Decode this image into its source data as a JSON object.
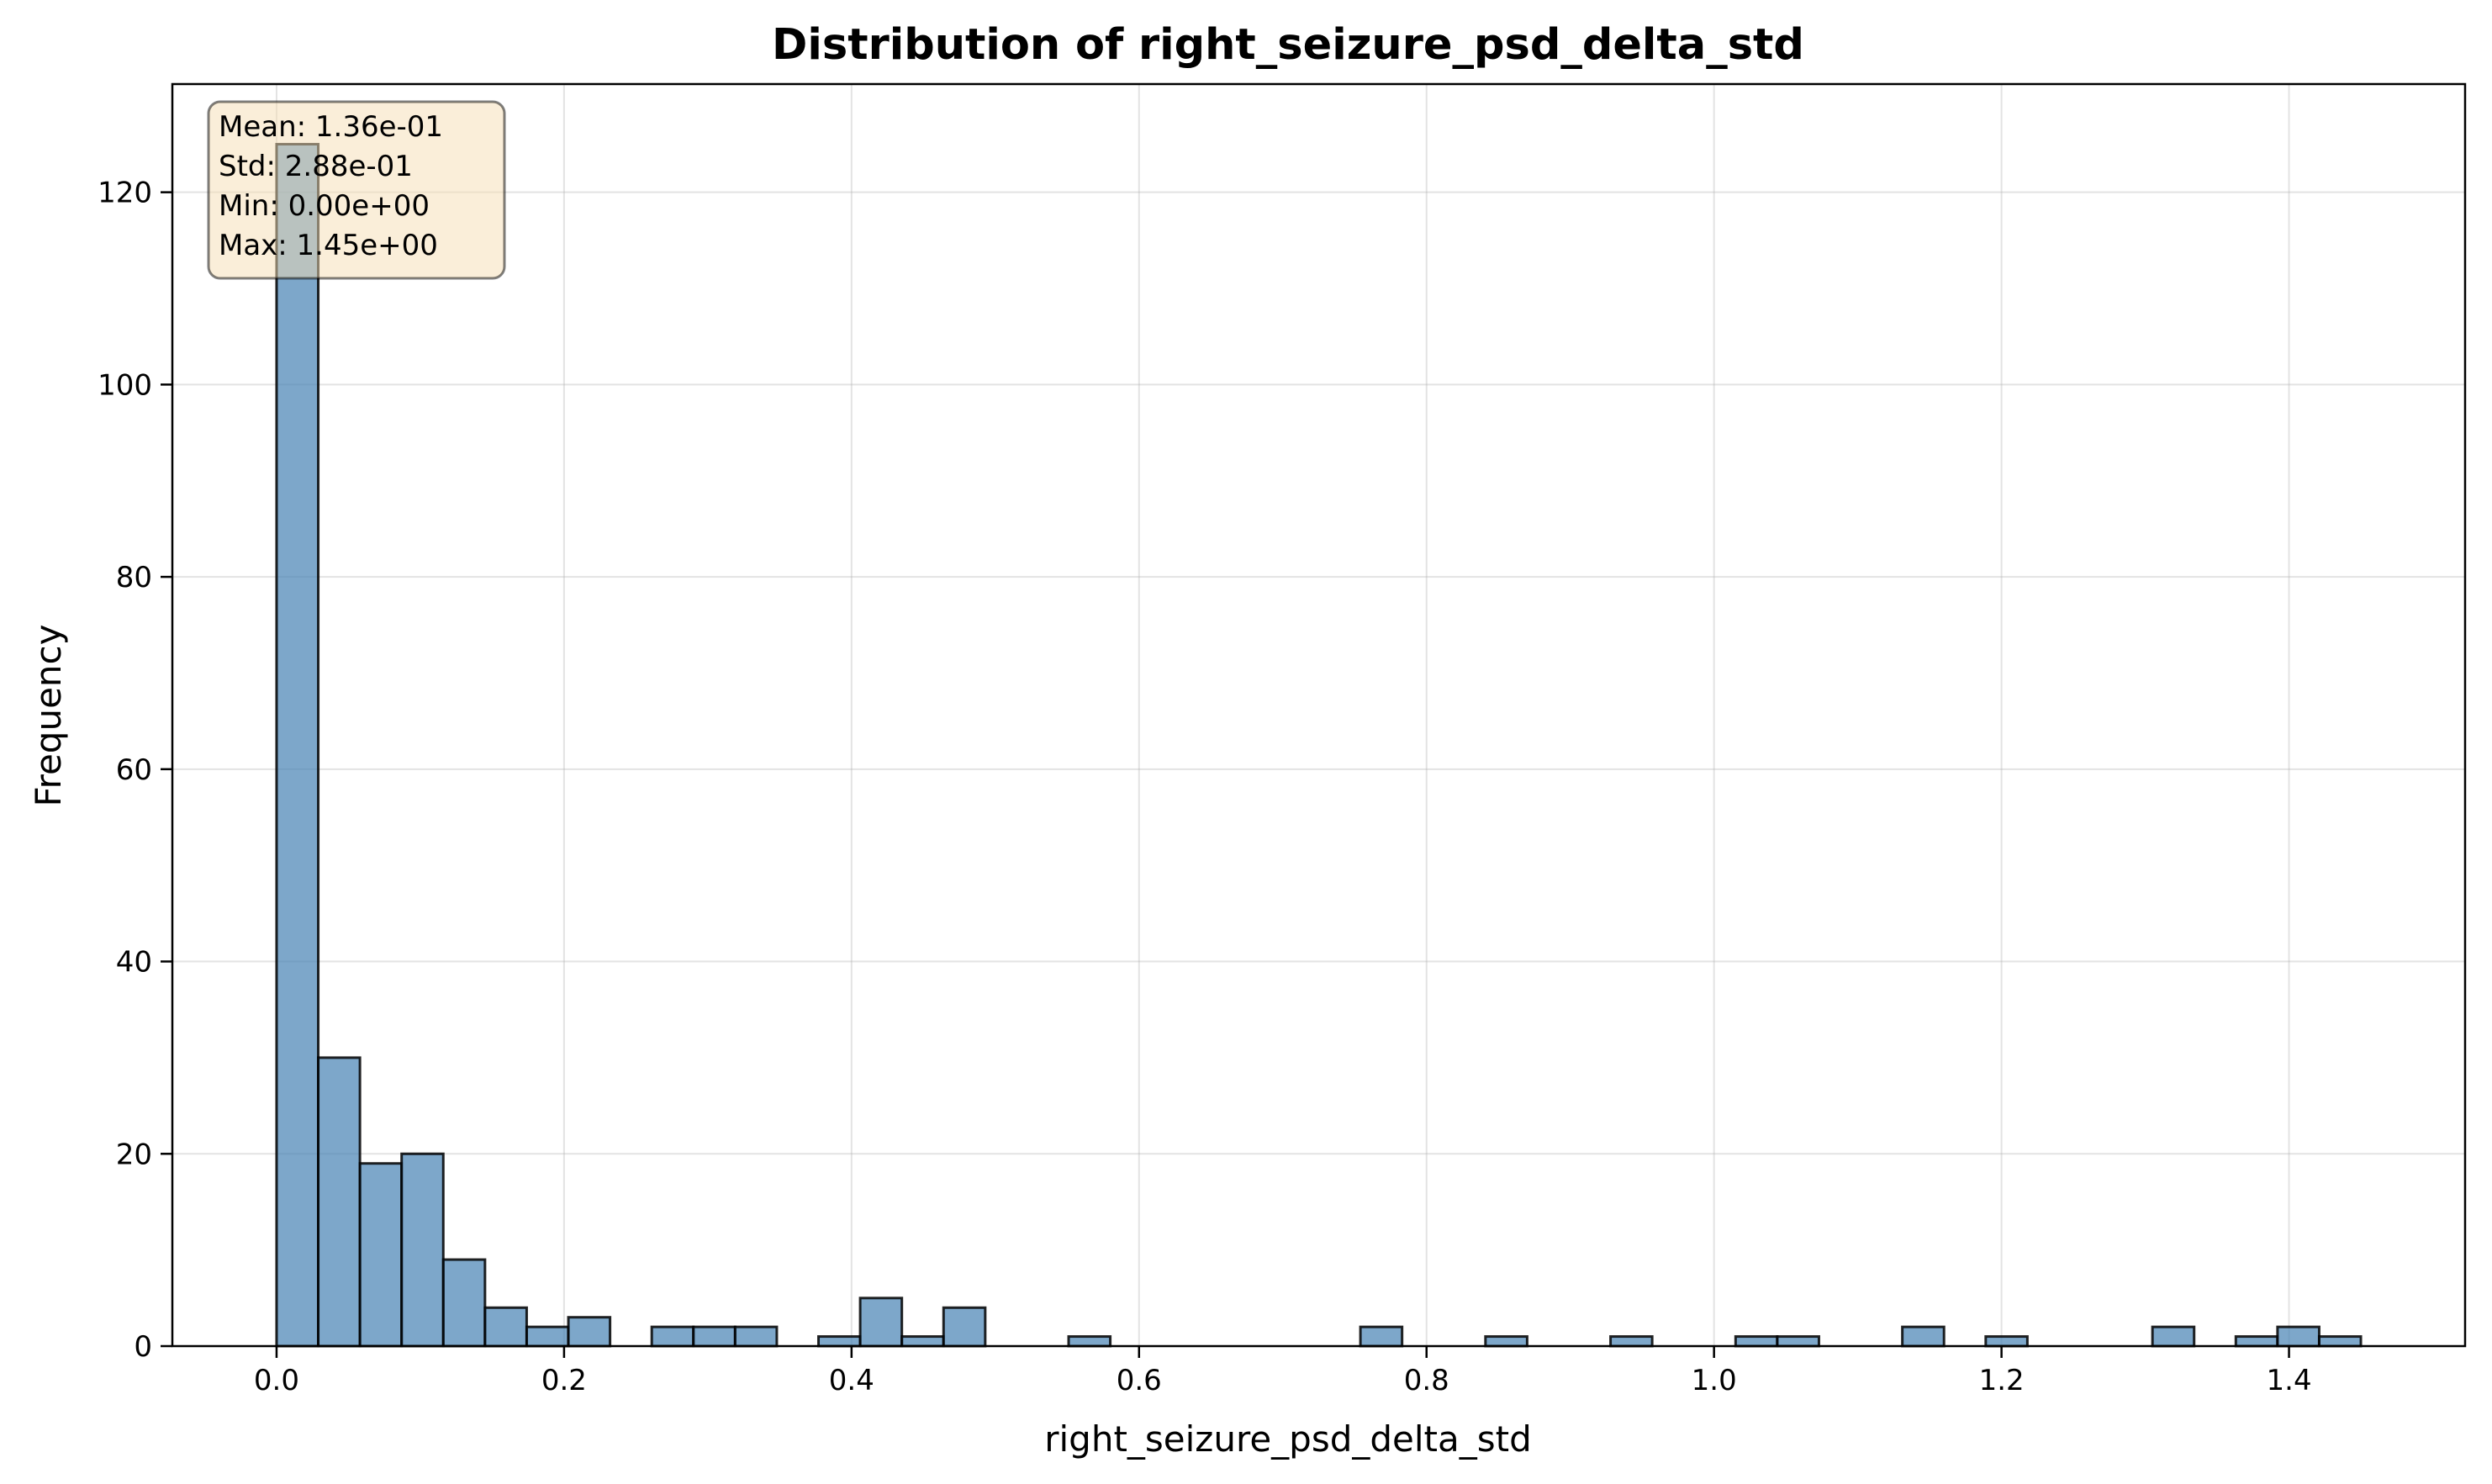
{
  "chart_data": {
    "type": "bar",
    "title": "Distribution of right_seizure_psd_delta_std",
    "xlabel": "right_seizure_psd_delta_std",
    "ylabel": "Frequency",
    "xlim": [
      -0.0725,
      1.5225
    ],
    "ylim": [
      0,
      131.25
    ],
    "x_ticks": [
      0.0,
      0.2,
      0.4,
      0.6,
      0.8,
      1.0,
      1.2,
      1.4
    ],
    "x_tick_labels": [
      "0.0",
      "0.2",
      "0.4",
      "0.6",
      "0.8",
      "1.0",
      "1.2",
      "1.4"
    ],
    "y_ticks": [
      0,
      20,
      40,
      60,
      80,
      100,
      120
    ],
    "y_tick_labels": [
      "0",
      "20",
      "40",
      "60",
      "80",
      "100",
      "120"
    ],
    "grid": true,
    "bin_start": 0.0,
    "bin_width": 0.029,
    "values": [
      125,
      30,
      19,
      20,
      9,
      4,
      2,
      3,
      0,
      2,
      2,
      2,
      0,
      1,
      5,
      1,
      4,
      0,
      0,
      1,
      0,
      0,
      0,
      0,
      0,
      0,
      2,
      0,
      0,
      1,
      0,
      0,
      1,
      0,
      0,
      1,
      1,
      0,
      0,
      2,
      0,
      1,
      0,
      0,
      0,
      2,
      0,
      1,
      2,
      1
    ],
    "colors": {
      "bar": "#4682b4",
      "edge": "#000000",
      "stats_box": "#f5deb3"
    },
    "stats_box": {
      "lines": [
        "Mean: 1.36e-01",
        "Std: 2.88e-01",
        "Min: 0.00e+00",
        "Max: 1.45e+00"
      ],
      "placement": "top-left"
    }
  }
}
